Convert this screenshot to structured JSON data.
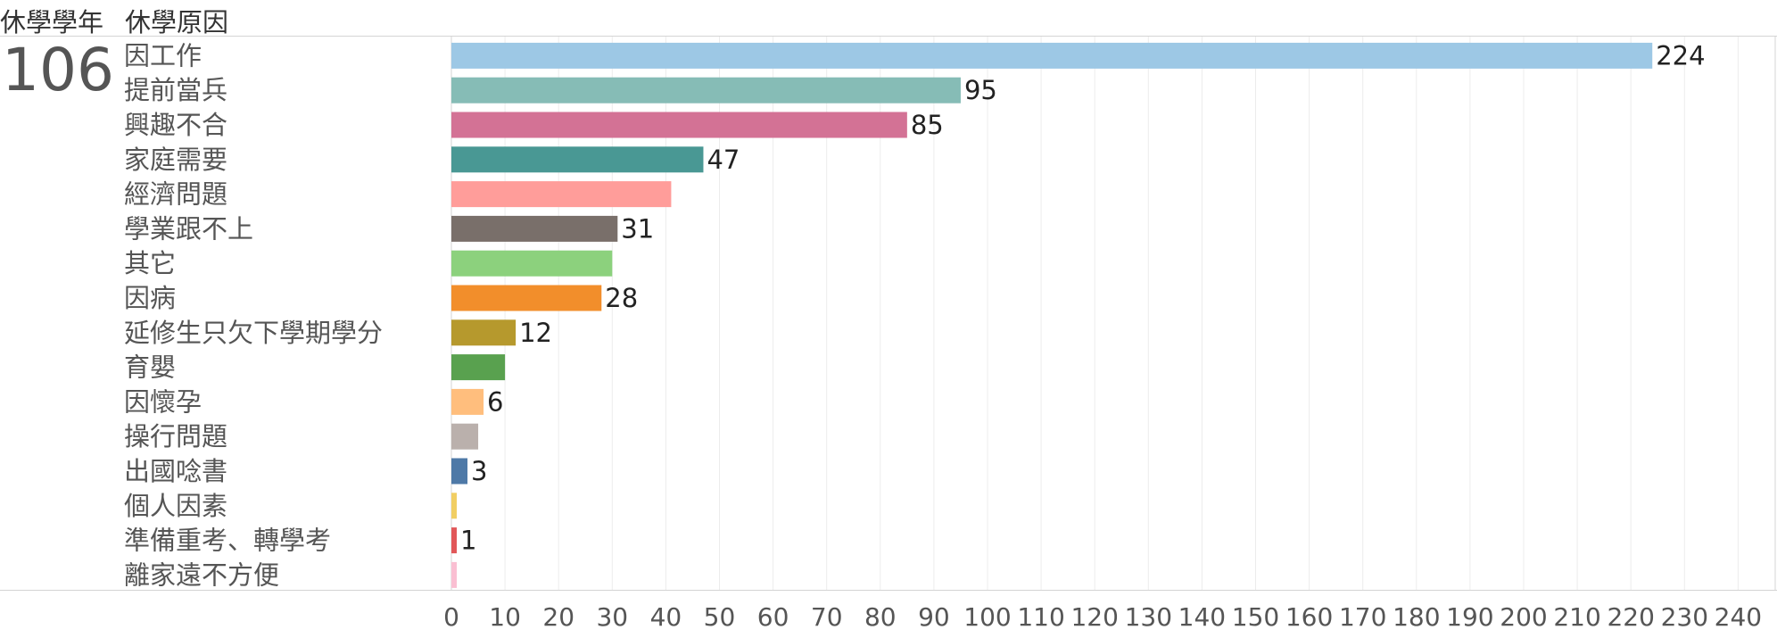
{
  "header": {
    "year_label": "休學學年",
    "reason_label": "休學原因"
  },
  "row_label": "106",
  "chart_data": {
    "type": "bar",
    "orientation": "horizontal",
    "categories": [
      "因工作",
      "提前當兵",
      "興趣不合",
      "家庭需要",
      "經濟問題",
      "學業跟不上",
      "其它",
      "因病",
      "延修生只欠下學期學分",
      "育嬰",
      "因懷孕",
      "操行問題",
      "出國唸書",
      "個人因素",
      "準備重考、轉學考",
      "離家遠不方便"
    ],
    "values": [
      224,
      95,
      85,
      47,
      41,
      31,
      30,
      28,
      12,
      10,
      6,
      5,
      3,
      1,
      1,
      1
    ],
    "value_labels": [
      "224",
      "95",
      "85",
      "47",
      "",
      "31",
      "",
      "28",
      "12",
      "",
      "6",
      "",
      "3",
      "",
      "1",
      ""
    ],
    "colors": [
      "#9dc8e5",
      "#86bcb6",
      "#d37295",
      "#499894",
      "#ff9d9a",
      "#796f6a",
      "#8cd17d",
      "#f28e2b",
      "#b6992d",
      "#59a14f",
      "#ffbe7d",
      "#bab0ac",
      "#4e79a7",
      "#f1ce63",
      "#e15759",
      "#fabfd2"
    ],
    "xlim": [
      0,
      245
    ],
    "xticks": [
      "0",
      "10",
      "20",
      "30",
      "40",
      "50",
      "60",
      "70",
      "80",
      "90",
      "100",
      "110",
      "120",
      "130",
      "140",
      "150",
      "160",
      "170",
      "180",
      "190",
      "200",
      "210",
      "220",
      "230",
      "240"
    ],
    "grid": true
  }
}
